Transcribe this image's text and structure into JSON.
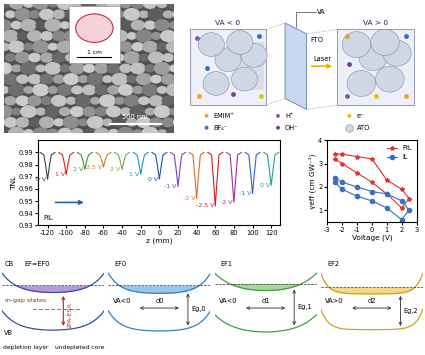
{
  "sem_image": {
    "scale_bar": "500 nm",
    "inset_scale_bar": "1 cm"
  },
  "schematic": {
    "left_label": "VA < 0",
    "right_label": "VA > 0",
    "source_label": "VA",
    "electrode_label": "FTO",
    "laser_label": "Laser",
    "legend": [
      {
        "label": "EMIM⁺",
        "color": "#f0a030"
      },
      {
        "label": "H⁺",
        "color": "#9050c0"
      },
      {
        "label": "e⁻",
        "color": "#e0c020"
      },
      {
        "label": "BF₄⁻",
        "color": "#3070d0"
      },
      {
        "label": "OH⁻",
        "color": "#7040a0"
      },
      {
        "label": "ATO",
        "color": "#cfd6e4"
      }
    ]
  },
  "chart_data": [
    {
      "type": "line",
      "xlabel": "z (mm)",
      "ylabel": "TNL",
      "annotation": "PIL",
      "xlim": [
        -130,
        130
      ],
      "xticks": [
        -120,
        -100,
        -80,
        -60,
        -40,
        -20,
        0,
        20,
        40,
        60,
        80,
        100,
        120
      ],
      "ylim": [
        0.93,
        1.0
      ],
      "yticks": [
        0.93,
        0.94,
        0.95,
        0.96,
        0.97,
        0.98,
        0.99
      ],
      "series": [
        {
          "name": "0 V",
          "color": "#404040",
          "x": [
            -128,
            -124,
            -122,
            -120,
            -118,
            -116,
            -112
          ],
          "values": [
            0.99,
            0.988,
            0.979,
            0.968,
            0.979,
            0.988,
            0.99
          ]
        },
        {
          "name": "1 V",
          "color": "#e02020",
          "x": [
            -108,
            -104,
            -102,
            -100,
            -98,
            -96,
            -92
          ],
          "values": [
            0.99,
            0.988,
            0.981,
            0.972,
            0.981,
            0.988,
            0.99
          ]
        },
        {
          "name": "2 V",
          "color": "#3a9a30",
          "x": [
            -88,
            -84,
            -82,
            -80,
            -78,
            -76,
            -72
          ],
          "values": [
            0.99,
            0.988,
            0.983,
            0.976,
            0.983,
            0.988,
            0.99
          ]
        },
        {
          "name": "2.5 V",
          "color": "#d08020",
          "x": [
            -68,
            -64,
            -62,
            -60,
            -58,
            -56,
            -52
          ],
          "values": [
            0.99,
            0.988,
            0.984,
            0.978,
            0.984,
            0.988,
            0.99
          ]
        },
        {
          "name": "2 V",
          "color": "#70b040",
          "x": [
            -48,
            -44,
            -42,
            -40,
            -38,
            -36,
            -32
          ],
          "values": [
            0.99,
            0.988,
            0.983,
            0.976,
            0.983,
            0.988,
            0.99
          ]
        },
        {
          "name": "1 V",
          "color": "#2090d0",
          "x": [
            -28,
            -24,
            -22,
            -20,
            -18,
            -16,
            -12
          ],
          "values": [
            0.99,
            0.988,
            0.981,
            0.972,
            0.981,
            0.988,
            0.99
          ]
        },
        {
          "name": "0 V",
          "color": "#2050c0",
          "x": [
            -8,
            -4,
            -2,
            0,
            2,
            4,
            8
          ],
          "values": [
            0.99,
            0.988,
            0.979,
            0.968,
            0.979,
            0.988,
            0.99
          ]
        },
        {
          "name": "-1 V",
          "color": "#8040c0",
          "x": [
            12,
            16,
            18,
            20,
            22,
            24,
            28
          ],
          "values": [
            0.99,
            0.988,
            0.976,
            0.962,
            0.976,
            0.988,
            0.99
          ]
        },
        {
          "name": "-2 V",
          "color": "#e07020",
          "x": [
            32,
            36,
            38,
            40,
            42,
            44,
            48
          ],
          "values": [
            0.99,
            0.988,
            0.971,
            0.952,
            0.971,
            0.988,
            0.99
          ]
        },
        {
          "name": "-2.5 V",
          "color": "#d02020",
          "x": [
            52,
            56,
            58,
            60,
            62,
            64,
            68
          ],
          "values": [
            0.99,
            0.988,
            0.968,
            0.946,
            0.968,
            0.988,
            0.99
          ]
        },
        {
          "name": "-2 V",
          "color": "#a030a0",
          "x": [
            72,
            76,
            78,
            80,
            82,
            84,
            88
          ],
          "values": [
            0.99,
            0.988,
            0.969,
            0.949,
            0.969,
            0.988,
            0.99
          ]
        },
        {
          "name": "-1 V",
          "color": "#3060d0",
          "x": [
            92,
            96,
            98,
            100,
            102,
            104,
            108
          ],
          "values": [
            0.99,
            0.988,
            0.973,
            0.956,
            0.973,
            0.988,
            0.99
          ]
        },
        {
          "name": "0 V",
          "color": "#20a0a0",
          "x": [
            112,
            116,
            118,
            120,
            122,
            124,
            128
          ],
          "values": [
            0.99,
            0.988,
            0.976,
            0.963,
            0.976,
            0.988,
            0.99
          ]
        }
      ]
    },
    {
      "type": "line",
      "xlabel": "Voltage (V)",
      "ylabel": "γeff (cm GW⁻¹)",
      "xlim": [
        -3,
        3
      ],
      "xticks": [
        -3,
        -2,
        -1,
        0,
        1,
        2,
        3
      ],
      "ylim": [
        0.5,
        4
      ],
      "yticks": [
        1,
        2,
        3,
        4
      ],
      "legend": "upper right",
      "series": [
        {
          "name": "PIL",
          "color": "#e03030",
          "marker": "star",
          "line_style": "solid",
          "x": [
            -2.5,
            -2,
            -1,
            0,
            1,
            2,
            2.5,
            2,
            1,
            0,
            -1,
            -2,
            -2.5
          ],
          "values": [
            3.4,
            3.4,
            3.3,
            3.2,
            2.3,
            1.9,
            1.5,
            1.1,
            1.7,
            2.2,
            2.6,
            3.0,
            3.2
          ]
        },
        {
          "name": "IL",
          "color": "#3a6fc0",
          "marker": "circle",
          "line_style": "solid",
          "x": [
            -2.5,
            -2,
            -1,
            0,
            1,
            2,
            2.5,
            2,
            1,
            0,
            -1,
            -2,
            -2.5
          ],
          "values": [
            2.4,
            2.2,
            2.0,
            1.8,
            1.7,
            1.4,
            1.0,
            0.6,
            1.1,
            1.4,
            1.6,
            1.9,
            2.2
          ]
        }
      ]
    }
  ],
  "band_diagrams": [
    {
      "cb": "CB",
      "vb": "VB",
      "fermi": "EF=EF0",
      "states": "in-gap states",
      "process": "2PA-ESA",
      "depletion": "depletion layer",
      "core": "undepleted core"
    },
    {
      "fermi": "EF0",
      "bias": "VA<0",
      "width": "d0",
      "gap": "Eg,0"
    },
    {
      "fermi": "EF1",
      "bias": "VA<0",
      "width": "d1",
      "gap": "Eg,1"
    },
    {
      "fermi": "EF2",
      "bias": "VA>0",
      "width": "d2",
      "gap": "Eg,2"
    }
  ]
}
